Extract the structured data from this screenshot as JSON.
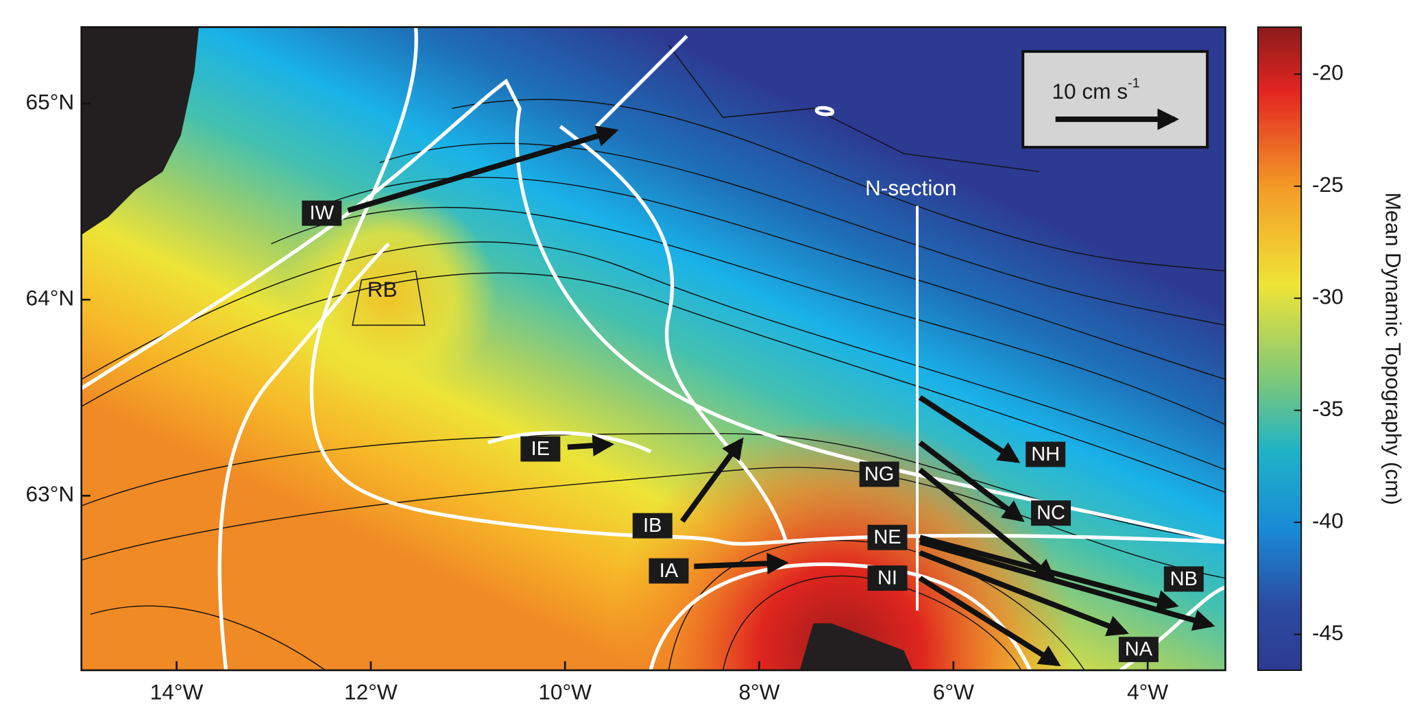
{
  "map": {
    "lon_range": [
      -14.98,
      -3.2
    ],
    "lat_range": [
      62.11,
      65.39
    ],
    "lon_ticks": [
      {
        "value": -14,
        "label": "14°W"
      },
      {
        "value": -12,
        "label": "12°W"
      },
      {
        "value": -10,
        "label": "10°W"
      },
      {
        "value": -8,
        "label": "8°W"
      },
      {
        "value": -6,
        "label": "6°W"
      },
      {
        "value": -4,
        "label": "4°W"
      }
    ],
    "lat_ticks": [
      {
        "value": 65,
        "label": "65°N"
      },
      {
        "value": 64,
        "label": "64°N"
      },
      {
        "value": 63,
        "label": "63°N"
      }
    ],
    "colorbar": {
      "label": "Mean Dynamic Topography (cm)",
      "clim": [
        -46.6,
        -17.9
      ],
      "ticks": [
        -20,
        -25,
        -30,
        -35,
        -40,
        -45
      ]
    },
    "scale_bar": {
      "text": "10 cm s",
      "superscript": "-1"
    },
    "section_label": "N-section",
    "feature_label": "RB",
    "stations": [
      "IW",
      "IE",
      "IB",
      "IA",
      "NG",
      "NE",
      "NI",
      "NH",
      "NC",
      "NB",
      "NA"
    ]
  }
}
